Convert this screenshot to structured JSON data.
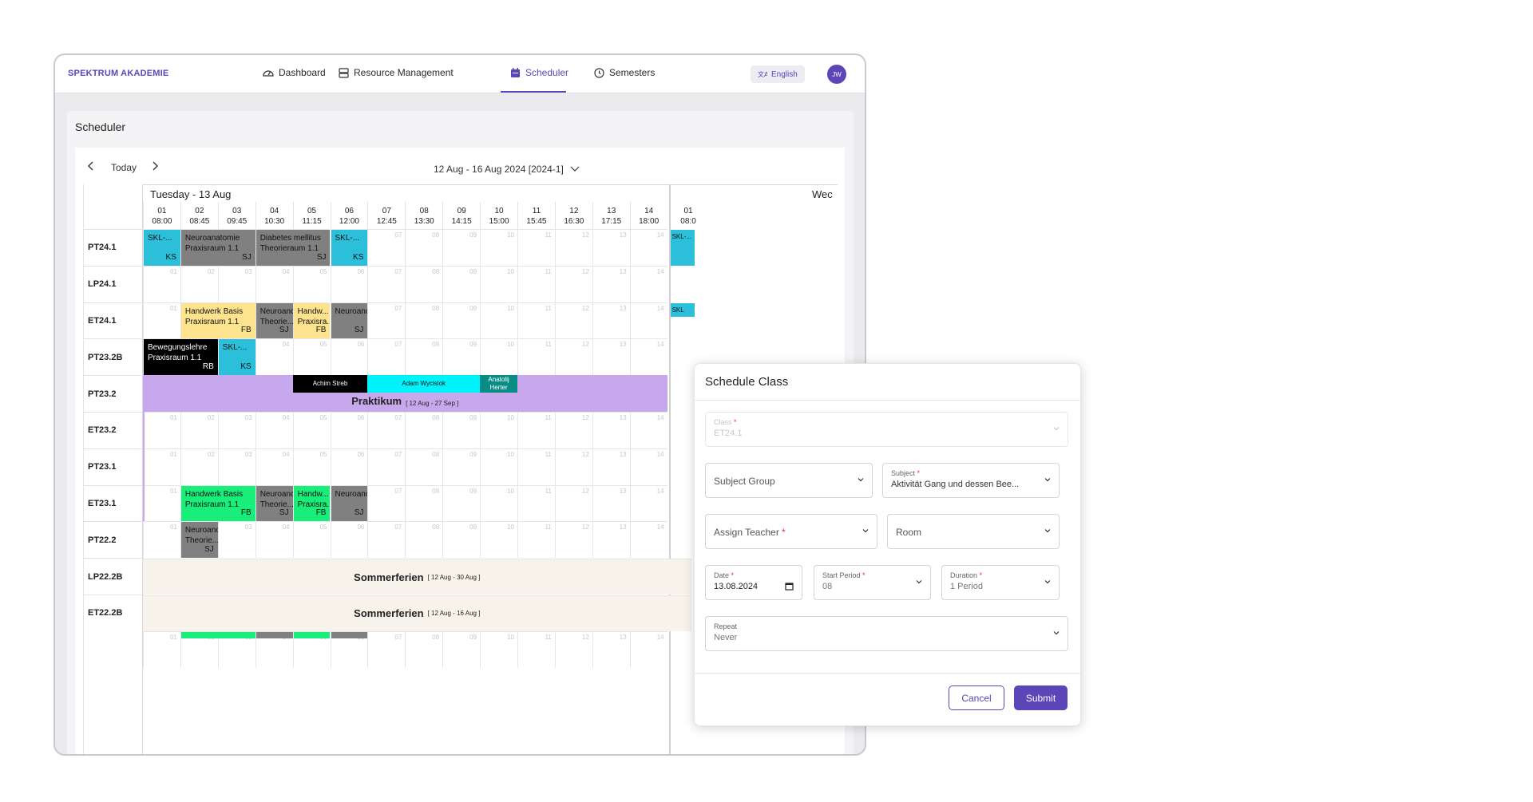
{
  "brand": "SPEKTRUM AKADEMIE",
  "nav": {
    "dashboard": "Dashboard",
    "resources": "Resource Management",
    "scheduler": "Scheduler",
    "semesters": "Semesters",
    "language": "English",
    "avatar": "JW"
  },
  "page_title": "Scheduler",
  "toolbar": {
    "today": "Today",
    "range": "12 Aug - 16 Aug 2024 [2024-1]"
  },
  "day_title": "Tuesday - 13 Aug",
  "next_day_title": "Wec",
  "periods": [
    {
      "num": "01",
      "time": "08:00"
    },
    {
      "num": "02",
      "time": "08:45"
    },
    {
      "num": "03",
      "time": "09:45"
    },
    {
      "num": "04",
      "time": "10:30"
    },
    {
      "num": "05",
      "time": "11:15"
    },
    {
      "num": "06",
      "time": "12:00"
    },
    {
      "num": "07",
      "time": "12:45"
    },
    {
      "num": "08",
      "time": "13:30"
    },
    {
      "num": "09",
      "time": "14:15"
    },
    {
      "num": "10",
      "time": "15:00"
    },
    {
      "num": "11",
      "time": "15:45"
    },
    {
      "num": "12",
      "time": "16:30"
    },
    {
      "num": "13",
      "time": "17:15"
    },
    {
      "num": "14",
      "time": "18:00"
    }
  ],
  "next_first_period": {
    "num": "01",
    "time": "08:0"
  },
  "rows": [
    "PT24.1",
    "LP24.1",
    "ET24.1",
    "PT23.2B",
    "PT23.2",
    "ET23.2",
    "PT23.1",
    "ET23.1",
    "PT22.2",
    "LP22.2B",
    "ET22.2B"
  ],
  "blocks": {
    "pt241_a": {
      "title": "SKL-...",
      "tag": "KS"
    },
    "pt241_b": {
      "title": "Neuroanatomie",
      "room": "Praxisraum 1.1",
      "tag": "SJ"
    },
    "pt241_c": {
      "title": "Diabetes mellitus",
      "room": "Theorieraum 1.1",
      "tag": "SJ"
    },
    "pt241_d": {
      "title": "SKL-...",
      "tag": "KS"
    },
    "pt241_next": {
      "title": "SKL-..."
    },
    "et241_a": {
      "title": "Handwerk Basis",
      "room": "Praxisraum 1.1",
      "tag": "FB"
    },
    "et241_b": {
      "title": "Neuroanc",
      "room": "Theorie...",
      "tag": "SJ"
    },
    "et241_c": {
      "title": "Handw...",
      "room": "Praxisra...",
      "tag": "FB"
    },
    "et241_d": {
      "title": "Neuroanc",
      "tag": "SJ"
    },
    "et241_next": {
      "title": "SKL -..."
    },
    "pt232b_a": {
      "title": "Bewegungslehre",
      "room": "Praxisraum 1.1",
      "tag": "RB"
    },
    "pt232b_b": {
      "title": "SKL-...",
      "tag": "KS"
    },
    "et231_a": {
      "title": "Handwerk Basis",
      "room": "Praxisraum 1.1",
      "tag": "FB"
    },
    "et231_b": {
      "title": "Neuroanc",
      "room": "Theorie...",
      "tag": "SJ"
    },
    "et231_c": {
      "title": "Handw...",
      "room": "Praxisra...",
      "tag": "FB"
    },
    "et231_d": {
      "title": "Neuroanc",
      "tag": "SJ"
    },
    "pt222_a": {
      "title": "Neuroanc",
      "room": "Theorie...",
      "tag": "SJ"
    }
  },
  "praktikum": {
    "label": "Praktikum",
    "dates": "[ 12 Aug - 27 Sep ]",
    "teachers": [
      "Achim Streb",
      "Adam Wycislok",
      "Anatolij Herter"
    ]
  },
  "sommer1": {
    "label": "Sommerferien",
    "dates": "[ 12 Aug - 30 Aug ]"
  },
  "sommer2": {
    "label": "Sommerferien",
    "dates": "[ 12 Aug - 16 Aug ]"
  },
  "dialog": {
    "title": "Schedule Class",
    "class_label": "Class",
    "class_value": "ET24.1",
    "subject_group": "Subject Group",
    "subject_label": "Subject",
    "subject_value": "Aktivität Gang und dessen Bee...",
    "assign_teacher": "Assign Teacher",
    "room": "Room",
    "date_label": "Date",
    "date_value": "13.08.2024",
    "start_label": "Start Period",
    "start_value": "08",
    "duration_label": "Duration",
    "duration_value": "1 Period",
    "repeat_label": "Repeat",
    "repeat_value": "Never",
    "cancel": "Cancel",
    "submit": "Submit"
  },
  "colors": {
    "accent": "#5b45b8",
    "cyan": "#2bbfd9",
    "gray": "#808080",
    "yellow": "#fde38e",
    "green": "#18ee79",
    "purple": "#c8a8ec",
    "beige": "#f7f3ea"
  }
}
